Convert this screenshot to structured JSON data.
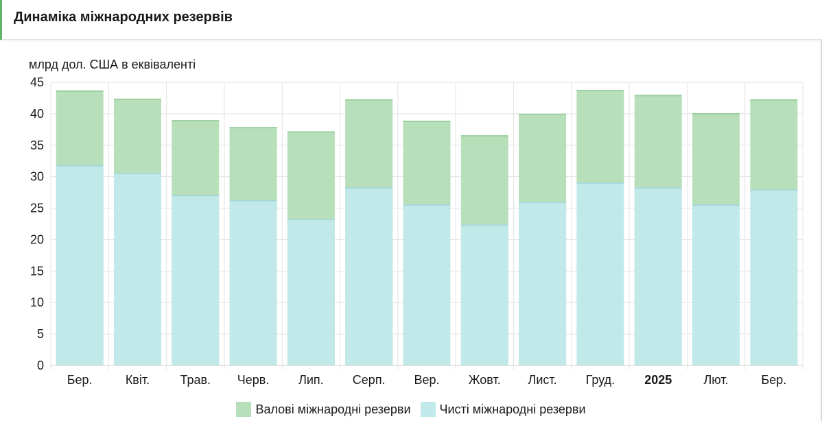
{
  "header": {
    "title": "Динаміка міжнародних резервів"
  },
  "colors": {
    "accent": "#5fb56a",
    "gross": "#b7dfb9",
    "net": "#c2e9ea",
    "grid": "#e3e3e3"
  },
  "chart_data": {
    "type": "bar",
    "stacked": false,
    "overlay": true,
    "title": "Динаміка міжнародних резервів",
    "ylabel": "млрд дол. США в еквіваленті",
    "xlabel": "",
    "ylim": [
      0,
      45
    ],
    "yticks": [
      0,
      5,
      10,
      15,
      20,
      25,
      30,
      35,
      40,
      45
    ],
    "grid": true,
    "legend_position": "bottom",
    "categories": [
      "Бер.",
      "Квіт.",
      "Трав.",
      "Черв.",
      "Лип.",
      "Серп.",
      "Вер.",
      "Жовт.",
      "Лист.",
      "Груд.",
      "2025",
      "Лют.",
      "Бер."
    ],
    "bold_categories": [
      "2025"
    ],
    "series": [
      {
        "name": "Валові міжнародні резерви",
        "color": "#b7dfb9",
        "values": [
          43.7,
          42.4,
          39.0,
          37.9,
          37.2,
          42.3,
          38.9,
          36.6,
          40.0,
          43.8,
          43.0,
          40.1,
          42.3
        ]
      },
      {
        "name": "Чисті міжнародні резерви",
        "color": "#c2e9ea",
        "values": [
          31.8,
          30.6,
          27.1,
          26.3,
          23.3,
          28.3,
          25.6,
          22.4,
          26.0,
          29.1,
          28.3,
          25.6,
          28.0
        ]
      }
    ]
  }
}
